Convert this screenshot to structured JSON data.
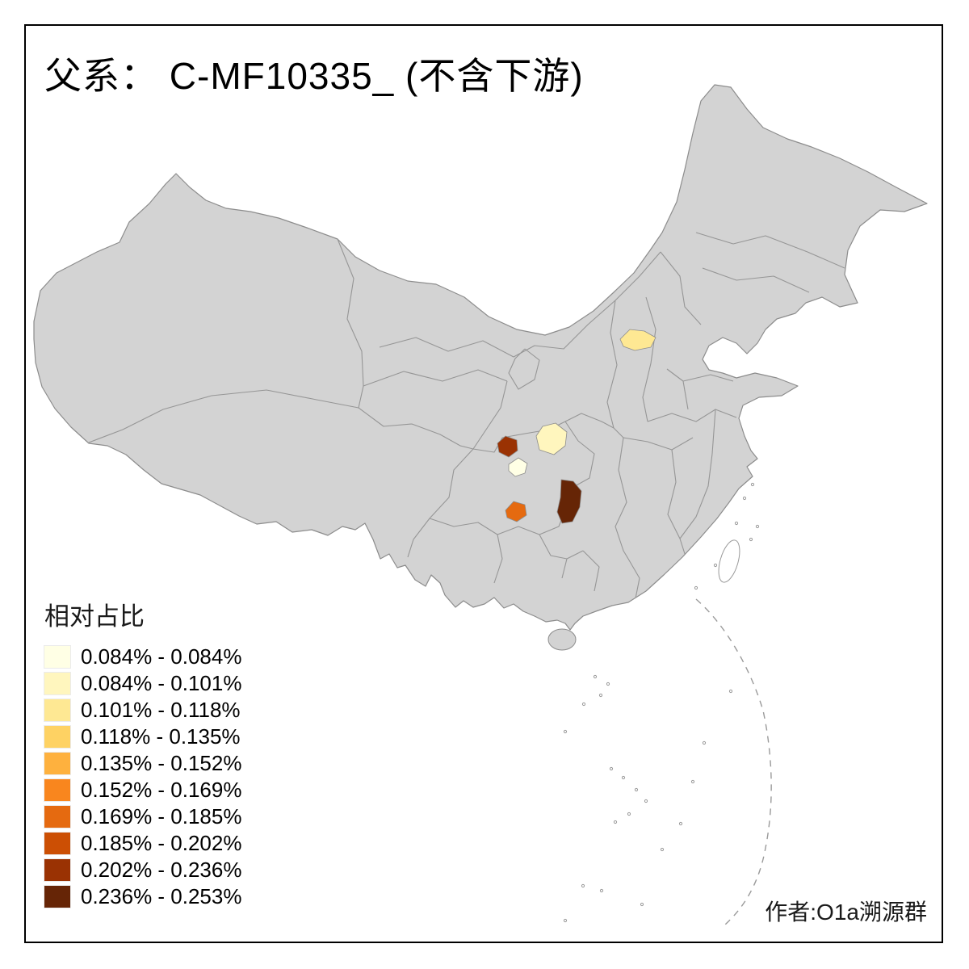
{
  "title": "父系： C-MF10335_ (不含下游)",
  "legend": {
    "title": "相对占比",
    "entries": [
      {
        "label": "0.084% - 0.084%",
        "color": "#FFFFE5"
      },
      {
        "label": "0.084% - 0.101%",
        "color": "#FFF6BE"
      },
      {
        "label": "0.101% - 0.118%",
        "color": "#FEE893"
      },
      {
        "label": "0.118% - 0.135%",
        "color": "#FED263"
      },
      {
        "label": "0.135% - 0.152%",
        "color": "#FEB13E"
      },
      {
        "label": "0.152% - 0.169%",
        "color": "#F9861E"
      },
      {
        "label": "0.169% - 0.185%",
        "color": "#E56A10"
      },
      {
        "label": "0.185% - 0.202%",
        "color": "#CC4F04"
      },
      {
        "label": "0.202% - 0.236%",
        "color": "#9A3203"
      },
      {
        "label": "0.236% - 0.253%",
        "color": "#662506"
      }
    ]
  },
  "attribution": "作者:O1a溯源群",
  "map": {
    "base_fill": "#D3D3D3",
    "border_color": "#8C8C8C",
    "background": "#FFFFFF",
    "regions": [
      {
        "id": "prefecture-hebei",
        "color": "#FEE893"
      },
      {
        "id": "prefecture-shaanxi-south",
        "color": "#FFF6BE"
      },
      {
        "id": "prefecture-sichuan-northeast",
        "color": "#9A3203"
      },
      {
        "id": "prefecture-sichuan-central",
        "color": "#FFFFE5"
      },
      {
        "id": "prefecture-guizhou-northeast",
        "color": "#662506"
      },
      {
        "id": "prefecture-sichuan-south",
        "color": "#E56A10"
      }
    ]
  }
}
